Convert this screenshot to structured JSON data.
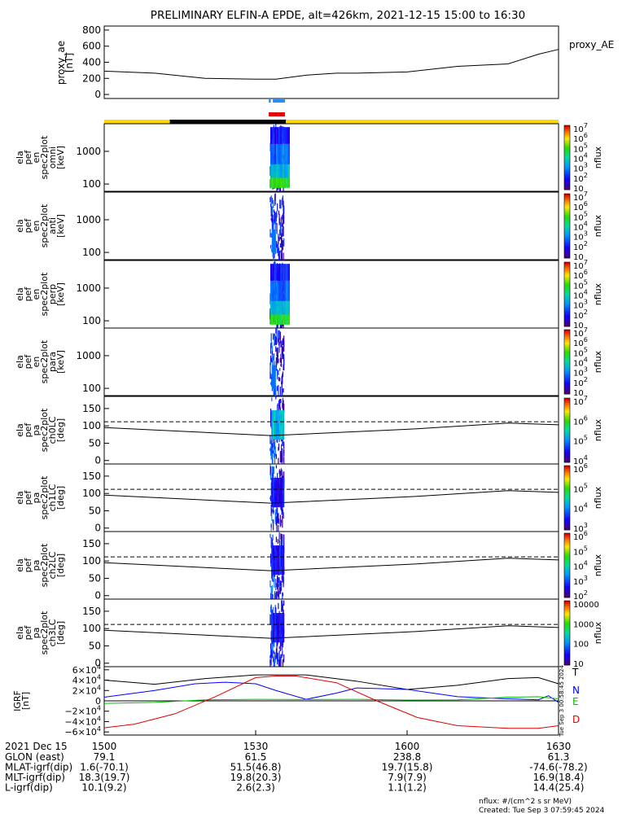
{
  "title": "PRELIMINARY ELFIN-A EPDE, alt=426km, 2021-12-15 15:00 to 16:30",
  "colors": {
    "ae_line": "#000000",
    "bar_blue": "#1e90ff",
    "bar_red": "#e00000",
    "status_yellow": "#ffd700",
    "status_black": "#000000",
    "grf_T": "#000000",
    "grf_N": "#0000ff",
    "grf_E": "#00c000",
    "grf_D": "#e00000"
  },
  "colorbar_label": "nflux",
  "footer": {
    "units_note": "nflux: #/(cm^2 s sr MeV)",
    "created": "Created: Tue Sep  3 07:59:45 2024",
    "side_stamp": "Tue Sep  3 00:58:45 2024"
  },
  "chart_data": [
    {
      "name": "proxy_ae",
      "type": "line",
      "ylabel_lines": [
        "proxy_ae",
        "[nT]"
      ],
      "right_label": "proxy_AE",
      "ylim": [
        -50,
        850
      ],
      "yticks": [
        "800",
        "600",
        "400",
        "200",
        "0"
      ],
      "ytick_values": [
        800,
        600,
        400,
        200,
        0
      ],
      "x_minutes": [
        0,
        10,
        20,
        30,
        34,
        40,
        46,
        50,
        60,
        70,
        80,
        86,
        90
      ],
      "y": [
        290,
        265,
        200,
        190,
        190,
        240,
        265,
        265,
        280,
        350,
        380,
        500,
        560
      ]
    },
    {
      "name": "orbit-bars",
      "type": "bar",
      "blue_span_minutes": [
        [
          32.6,
          33.0
        ],
        [
          33.4,
          35.8
        ]
      ],
      "red_span_minutes": [
        [
          32.6,
          35.8
        ]
      ],
      "status_segments": [
        {
          "start": 0,
          "end": 13.0,
          "color": "yellow"
        },
        {
          "start": 13.0,
          "end": 36.0,
          "color": "black"
        },
        {
          "start": 36.0,
          "end": 90,
          "color": "yellow"
        }
      ]
    },
    {
      "name": "spec-omni",
      "type": "heatmap",
      "ylabel_lines": [
        "ela",
        "pef",
        "en",
        "spec2plot",
        "omni",
        "[keV]"
      ],
      "yticks": [
        "1000",
        "100"
      ],
      "ytick_values": [
        1000,
        100
      ],
      "ylim_log": [
        60,
        7000
      ],
      "colorbar_ticks": [
        "10^7",
        "10^6",
        "10^5",
        "10^4",
        "10^3",
        "10^2",
        "10"
      ]
    },
    {
      "name": "spec-anti",
      "type": "heatmap",
      "ylabel_lines": [
        "ela",
        "pef",
        "en",
        "spec2plot",
        "anti",
        "[keV]"
      ],
      "yticks": [
        "1000",
        "100"
      ],
      "ytick_values": [
        1000,
        100
      ],
      "ylim_log": [
        60,
        7000
      ],
      "colorbar_ticks": [
        "10^7",
        "10^6",
        "10^5",
        "10^4",
        "10^3",
        "10^2",
        "10"
      ]
    },
    {
      "name": "spec-perp",
      "type": "heatmap",
      "ylabel_lines": [
        "ela",
        "pef",
        "en",
        "spec2plot",
        "perp",
        "[keV]"
      ],
      "yticks": [
        "1000",
        "100"
      ],
      "ytick_values": [
        1000,
        100
      ],
      "ylim_log": [
        60,
        7000
      ],
      "colorbar_ticks": [
        "10^7",
        "10^6",
        "10^5",
        "10^4",
        "10^3",
        "10^2",
        "10"
      ]
    },
    {
      "name": "spec-para",
      "type": "heatmap",
      "ylabel_lines": [
        "ela",
        "pef",
        "en",
        "spec2plot",
        "para",
        "[keV]"
      ],
      "yticks": [
        "1000",
        "100"
      ],
      "ytick_values": [
        1000,
        100
      ],
      "ylim_log": [
        60,
        7000
      ],
      "colorbar_ticks": [
        "10^7",
        "10^6",
        "10^5",
        "10^4",
        "10^3",
        "10^2",
        "10"
      ]
    },
    {
      "name": "pa-ch0",
      "type": "heatmap",
      "ylabel_lines": [
        "ela",
        "pef",
        "pa",
        "spec2plot",
        "ch0LC",
        "[deg]"
      ],
      "yticks": [
        "150",
        "100",
        "50",
        "0"
      ],
      "ytick_values": [
        150,
        100,
        50,
        0
      ],
      "ylim": [
        -10,
        185
      ],
      "dashed_level": 112,
      "lc_start": 95,
      "lc_mid": 72,
      "lc_end": 103,
      "colorbar_ticks": [
        "10^7",
        "10^6",
        "10^5",
        "10^4"
      ]
    },
    {
      "name": "pa-ch1",
      "type": "heatmap",
      "ylabel_lines": [
        "ela",
        "pef",
        "pa",
        "spec2plot",
        "ch1LC",
        "[deg]"
      ],
      "yticks": [
        "150",
        "100",
        "50",
        "0"
      ],
      "ytick_values": [
        150,
        100,
        50,
        0
      ],
      "ylim": [
        -10,
        185
      ],
      "dashed_level": 112,
      "lc_start": 95,
      "lc_mid": 72,
      "lc_end": 103,
      "colorbar_ticks": [
        "10^6",
        "10^5",
        "10^4",
        "10^3"
      ]
    },
    {
      "name": "pa-ch2",
      "type": "heatmap",
      "ylabel_lines": [
        "ela",
        "pef",
        "pa",
        "spec2plot",
        "ch2LC",
        "[deg]"
      ],
      "yticks": [
        "150",
        "100",
        "50",
        "0"
      ],
      "ytick_values": [
        150,
        100,
        50,
        0
      ],
      "ylim": [
        -10,
        185
      ],
      "dashed_level": 112,
      "lc_start": 95,
      "lc_mid": 72,
      "lc_end": 103,
      "colorbar_ticks": [
        "10^6",
        "10^5",
        "10^4",
        "10^3",
        "10^2"
      ]
    },
    {
      "name": "pa-ch3",
      "type": "heatmap",
      "ylabel_lines": [
        "ela",
        "pef",
        "pa",
        "spec2plot",
        "ch3LC",
        "[deg]"
      ],
      "yticks": [
        "150",
        "100",
        "50",
        "0"
      ],
      "ytick_values": [
        150,
        100,
        50,
        0
      ],
      "ylim": [
        -10,
        185
      ],
      "dashed_level": 112,
      "lc_start": 95,
      "lc_mid": 72,
      "lc_end": 103,
      "colorbar_ticks": [
        "10000",
        "1000",
        "100",
        "10"
      ]
    },
    {
      "name": "igrf",
      "type": "line",
      "ylabel_lines": [
        "IGRF",
        "[nT]"
      ],
      "yticks": [
        "6×10^4",
        "4×10^4",
        "2×10^4",
        "0",
        "−2×10^4",
        "−4×10^4",
        "−6×10^4"
      ],
      "ytick_values": [
        60000,
        40000,
        20000,
        0,
        -20000,
        -40000,
        -60000
      ],
      "ylim": [
        -66000,
        66000
      ],
      "series": [
        {
          "name": "T",
          "x_minutes": [
            0,
            10,
            20,
            30,
            40,
            50,
            60,
            70,
            80,
            86,
            90
          ],
          "y": [
            40000,
            32000,
            43000,
            50000,
            50000,
            38000,
            22000,
            30000,
            43000,
            45000,
            33000
          ]
        },
        {
          "name": "N",
          "x_minutes": [
            0,
            10,
            18,
            24,
            30,
            34,
            40,
            46,
            50,
            60,
            70,
            80,
            86,
            88,
            90
          ],
          "y": [
            7000,
            20000,
            33000,
            36000,
            33000,
            20000,
            3000,
            15000,
            25000,
            22000,
            8000,
            4000,
            2000,
            10000,
            -3000
          ]
        },
        {
          "name": "E",
          "x_minutes": [
            0,
            10,
            20,
            30,
            40,
            50,
            60,
            70,
            80,
            86,
            90
          ],
          "y": [
            -5000,
            -3000,
            2000,
            3000,
            2500,
            3000,
            1500,
            2000,
            7000,
            8000,
            4000
          ]
        },
        {
          "name": "D",
          "x_minutes": [
            0,
            6,
            14,
            22,
            30,
            34,
            38,
            46,
            54,
            62,
            70,
            80,
            86,
            90
          ],
          "y": [
            -52000,
            -45000,
            -25000,
            8000,
            45000,
            48000,
            48000,
            35000,
            0,
            -32000,
            -48000,
            -53000,
            -53000,
            -48000
          ]
        }
      ]
    }
  ],
  "xaxis": {
    "start_minutes": 0,
    "end_minutes": 90,
    "tick_minutes": [
      0,
      30,
      60,
      90
    ],
    "tick_labels": [
      "1500",
      "1530",
      "1600",
      "1630"
    ],
    "first_label": "2021 Dec 15"
  },
  "ephemeris_rows": [
    {
      "label": "GLON (east)",
      "values": [
        "79.1",
        "61.5",
        "238.8",
        "61.3"
      ]
    },
    {
      "label": "MLAT-igrf(dip)",
      "values": [
        "1.6(-70.1)",
        "51.5(46.8)",
        "19.7(15.8)",
        "-74.6(-78.2)"
      ]
    },
    {
      "label": "MLT-igrf(dip)",
      "values": [
        "18.3(19.7)",
        "19.8(20.3)",
        "7.9(7.9)",
        "16.9(18.4)"
      ]
    },
    {
      "label": "L-igrf(dip)",
      "values": [
        "10.1(9.2)",
        "2.6(2.3)",
        "1.1(1.2)",
        "14.4(25.4)"
      ]
    }
  ]
}
